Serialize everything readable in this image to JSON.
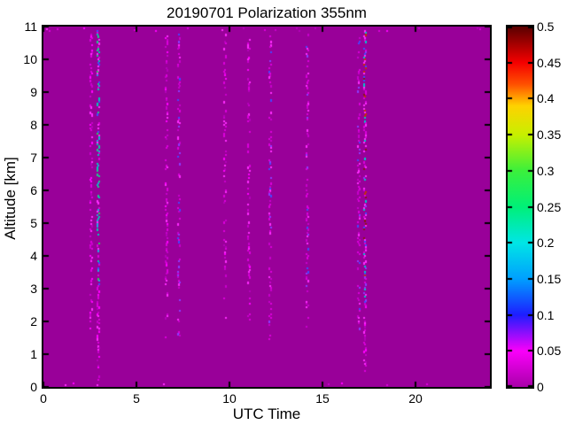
{
  "figure": {
    "background": "#ffffff"
  },
  "chart_data": {
    "type": "heatmap",
    "title": "20190701 Polarization 355nm",
    "xlabel": "UTC Time",
    "ylabel": "Altitude [km]",
    "xlim": [
      0,
      24
    ],
    "ylim": [
      0,
      11
    ],
    "grid": false,
    "x_ticks": {
      "values": [
        0,
        5,
        10,
        15,
        20
      ],
      "labels": [
        "0",
        "5",
        "10",
        "15",
        "20"
      ]
    },
    "y_ticks": {
      "values": [
        0,
        1,
        2,
        3,
        4,
        5,
        6,
        7,
        8,
        9,
        10,
        11
      ],
      "labels": [
        "0",
        "1",
        "2",
        "3",
        "4",
        "5",
        "6",
        "7",
        "8",
        "9",
        "10",
        "11"
      ]
    },
    "background_field": {
      "value": 0,
      "color": "#990099",
      "description": "Depolarization ratio is ~0 (magenta) over nearly the whole 0-24 UTC, 0-11 km domain"
    },
    "colorbar": {
      "min": 0,
      "max": 0.5,
      "tick_values": [
        0,
        0.05,
        0.1,
        0.15,
        0.2,
        0.25,
        0.3,
        0.35,
        0.4,
        0.45,
        0.5
      ],
      "tick_labels": [
        "0",
        "0.05",
        "0.1",
        "0.15",
        "0.2",
        "0.25",
        "0.3",
        "0.35",
        "0.4",
        "0.45",
        "0.5"
      ],
      "gradient_stops": [
        {
          "pos": 0.0,
          "color": "#aa00aa"
        },
        {
          "pos": 0.1,
          "color": "#fa00fa"
        },
        {
          "pos": 0.2,
          "color": "#1e1eff"
        },
        {
          "pos": 0.3,
          "color": "#00a0ff"
        },
        {
          "pos": 0.4,
          "color": "#00e6e6"
        },
        {
          "pos": 0.5,
          "color": "#00f078"
        },
        {
          "pos": 0.6,
          "color": "#3cf03c"
        },
        {
          "pos": 0.7,
          "color": "#c8f000"
        },
        {
          "pos": 0.78,
          "color": "#ffd200"
        },
        {
          "pos": 0.84,
          "color": "#ff5000"
        },
        {
          "pos": 0.9,
          "color": "#f50000"
        },
        {
          "pos": 1.0,
          "color": "#5a0000"
        }
      ]
    },
    "noise_stripes": [
      {
        "utc": 2.55,
        "palette": "pink",
        "density": 0.4,
        "min_km": 0.9,
        "max_km": 10.85,
        "fade_km": 1.6,
        "approx_value_range": [
          0.02,
          0.08
        ]
      },
      {
        "utc": 2.93,
        "palette": "mixed_cyan",
        "density": 0.72,
        "min_km": 0.05,
        "max_km": 10.9,
        "fade_km": 0.5,
        "pink_below_km": 3.0,
        "low_boost": true,
        "approx_value_range": [
          0.02,
          0.25
        ]
      },
      {
        "utc": 6.62,
        "palette": "pink",
        "density": 0.42,
        "min_km": 1.2,
        "max_km": 10.8,
        "fade_km": 2.0,
        "approx_value_range": [
          0.02,
          0.08
        ]
      },
      {
        "utc": 7.3,
        "palette": "pink_violet",
        "density": 0.38,
        "min_km": 1.4,
        "max_km": 10.8,
        "fade_km": 2.2,
        "approx_value_range": [
          0.02,
          0.12
        ]
      },
      {
        "utc": 9.75,
        "palette": "pink",
        "density": 0.33,
        "min_km": 1.5,
        "max_km": 10.8,
        "fade_km": 2.2,
        "approx_value_range": [
          0.02,
          0.08
        ]
      },
      {
        "utc": 11.05,
        "palette": "pink",
        "density": 0.42,
        "min_km": 1.4,
        "max_km": 10.85,
        "fade_km": 2.0,
        "approx_value_range": [
          0.02,
          0.08
        ]
      },
      {
        "utc": 12.2,
        "palette": "pink_violet",
        "density": 0.46,
        "min_km": 1.3,
        "max_km": 10.85,
        "fade_km": 2.0,
        "approx_value_range": [
          0.02,
          0.12
        ]
      },
      {
        "utc": 14.2,
        "palette": "pink_violet",
        "density": 0.4,
        "min_km": 1.6,
        "max_km": 10.8,
        "fade_km": 2.2,
        "approx_value_range": [
          0.02,
          0.12
        ]
      },
      {
        "utc": 16.95,
        "palette": "pink_violet",
        "density": 0.46,
        "min_km": 1.0,
        "max_km": 10.9,
        "fade_km": 1.6,
        "approx_value_range": [
          0.02,
          0.12
        ]
      },
      {
        "utc": 17.28,
        "palette": "mixed_warm",
        "density": 0.72,
        "min_km": 0.3,
        "max_km": 10.9,
        "fade_km": 1.0,
        "pink_below_km": 2.6,
        "approx_value_range": [
          0.02,
          0.5
        ]
      }
    ],
    "palettes": {
      "pink": {
        "colors": [
          "#dc00dc",
          "#ff2cff",
          "#c800cc",
          "#ff00ff",
          "#b400bb"
        ],
        "weights": [
          0.3,
          0.22,
          0.22,
          0.16,
          0.1
        ]
      },
      "pink_violet": {
        "colors": [
          "#dc00dc",
          "#ff2cff",
          "#8a3cff",
          "#4646ff",
          "#c800cc"
        ],
        "weights": [
          0.34,
          0.2,
          0.14,
          0.1,
          0.22
        ]
      },
      "mixed_cyan": {
        "colors": [
          "#00c8b4",
          "#1ec88c",
          "#28a0e0",
          "#3c50ff",
          "#ff2cff",
          "#dc00dc",
          "#30c860"
        ],
        "weights": [
          0.2,
          0.16,
          0.12,
          0.12,
          0.16,
          0.16,
          0.08
        ]
      },
      "mixed_warm": {
        "colors": [
          "#00c8c8",
          "#3c50ff",
          "#c83200",
          "#8c1414",
          "#ff2cff",
          "#8a3cff",
          "#dc00dc"
        ],
        "weights": [
          0.16,
          0.14,
          0.12,
          0.1,
          0.22,
          0.1,
          0.16
        ]
      }
    },
    "edge_noise": {
      "top_density": 0.1,
      "bottom_density": 0.05
    }
  }
}
